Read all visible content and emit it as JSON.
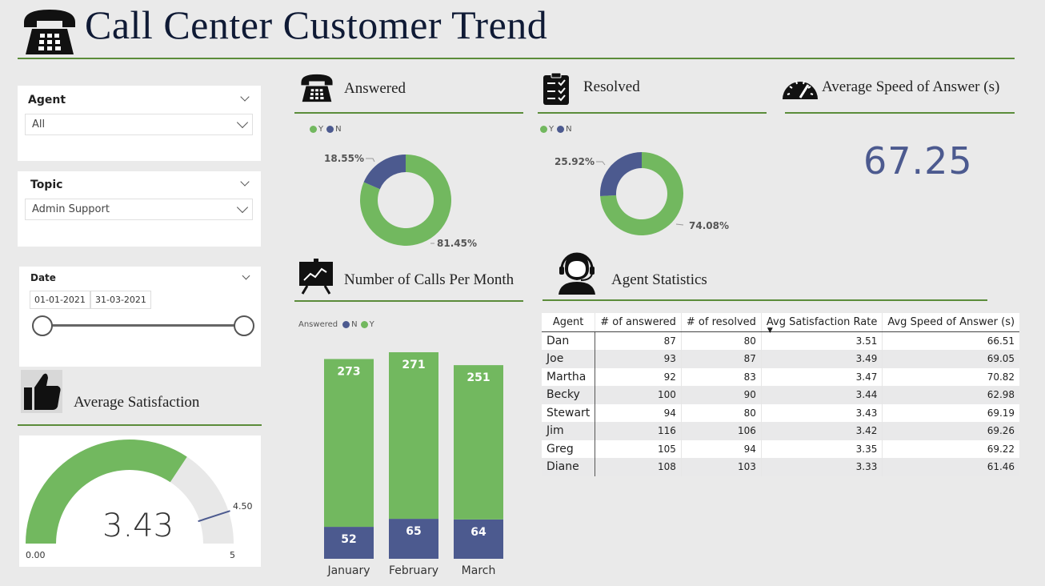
{
  "header": {
    "title": "Call Center Customer Trend"
  },
  "filters": {
    "agent": {
      "label": "Agent",
      "value": "All"
    },
    "topic": {
      "label": "Topic",
      "value": "Admin Support"
    },
    "date": {
      "label": "Date",
      "start": "01-01-2021",
      "end": "31-03-2021"
    }
  },
  "sections": {
    "answered": "Answered",
    "resolved": "Resolved",
    "avg_speed": "Average Speed of Answer (s)",
    "calls_per_month": "Number of Calls Per Month",
    "agent_stats": "Agent Statistics",
    "avg_satisfaction": "Average Satisfaction"
  },
  "legend": {
    "y": "Y",
    "n": "N",
    "answered_label": "Answered"
  },
  "colors": {
    "green": "#72b85f",
    "navy": "#4c5a8f",
    "rule": "#5b8c3a"
  },
  "kpi": {
    "avg_speed_value": "67.25"
  },
  "gauge": {
    "value": "3.43",
    "min": "0.00",
    "max": "5",
    "target": "4.50",
    "value_num": 3.43,
    "max_num": 5,
    "target_num": 4.5
  },
  "table": {
    "headers": [
      "Agent",
      "# of answered",
      "# of resolved",
      "Avg Satisfaction Rate",
      "Avg Speed of Answer (s)"
    ],
    "rows": [
      [
        "Dan",
        "87",
        "80",
        "3.51",
        "66.51"
      ],
      [
        "Joe",
        "93",
        "87",
        "3.49",
        "69.05"
      ],
      [
        "Martha",
        "92",
        "83",
        "3.47",
        "70.82"
      ],
      [
        "Becky",
        "100",
        "90",
        "3.44",
        "62.98"
      ],
      [
        "Stewart",
        "94",
        "80",
        "3.43",
        "69.19"
      ],
      [
        "Jim",
        "116",
        "106",
        "3.42",
        "69.26"
      ],
      [
        "Greg",
        "105",
        "94",
        "3.35",
        "69.22"
      ],
      [
        "Diane",
        "108",
        "103",
        "3.33",
        "61.46"
      ]
    ]
  },
  "chart_data": [
    {
      "type": "pie",
      "title": "Answered",
      "labels": [
        "Y",
        "N"
      ],
      "values": [
        81.45,
        18.55
      ],
      "data_labels": [
        "81.45%",
        "18.55%"
      ]
    },
    {
      "type": "pie",
      "title": "Resolved",
      "labels": [
        "Y",
        "N"
      ],
      "values": [
        74.08,
        25.92
      ],
      "data_labels": [
        "74.08%",
        "25.92%"
      ]
    },
    {
      "type": "bar",
      "title": "Number of Calls Per Month",
      "categories": [
        "January",
        "February",
        "March"
      ],
      "series": [
        {
          "name": "N",
          "values": [
            52,
            65,
            64
          ]
        },
        {
          "name": "Y",
          "values": [
            273,
            271,
            251
          ]
        }
      ],
      "stacked": true
    }
  ]
}
